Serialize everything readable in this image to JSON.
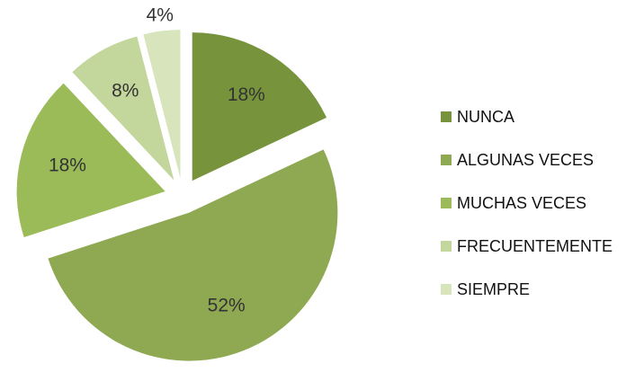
{
  "chart_data": {
    "type": "pie",
    "categories": [
      "NUNCA",
      "ALGUNAS VECES",
      "MUCHAS VECES",
      "FRECUENTEMENTE",
      "SIEMPRE"
    ],
    "values": [
      18,
      52,
      18,
      8,
      4
    ],
    "value_labels": [
      "18%",
      "52%",
      "18%",
      "8%",
      "4%"
    ],
    "colors": [
      "#77933c",
      "#8fa952",
      "#9bbb59",
      "#c3d69b",
      "#d7e4bc"
    ],
    "exploded": true,
    "legend": "right"
  }
}
